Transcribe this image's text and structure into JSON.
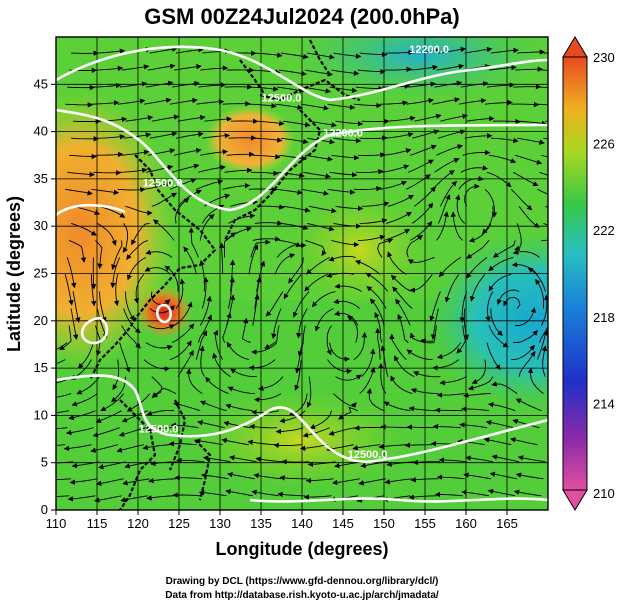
{
  "title": "GSM 00Z24Jul2024 (200.0hPa)",
  "xlabel": "Longitude (degrees)",
  "ylabel": "Latitude (degrees)",
  "credits": {
    "line1": "Drawing by DCL (https://www.gfd-dennou.org/library/dcl/)",
    "line2": "Data from http://database.rish.kyoto-u.ac.jp/arch/jmadata/"
  },
  "axes": {
    "xlim": [
      110,
      170
    ],
    "ylim": [
      0,
      50
    ],
    "x_ticks": [
      "110",
      "115",
      "120",
      "125",
      "130",
      "135",
      "140",
      "145",
      "150",
      "155",
      "160",
      "165"
    ],
    "x_tick_values": [
      110,
      115,
      120,
      125,
      130,
      135,
      140,
      145,
      150,
      155,
      160,
      165
    ],
    "y_ticks": [
      "0",
      "5",
      "10",
      "15",
      "20",
      "25",
      "30",
      "35",
      "40",
      "45"
    ],
    "y_tick_values": [
      0,
      5,
      10,
      15,
      20,
      25,
      30,
      35,
      40,
      45
    ],
    "grid": true
  },
  "colorbar": {
    "range": [
      210,
      230
    ],
    "ticks": [
      "230",
      "226",
      "222",
      "218",
      "214",
      "210"
    ],
    "tick_values": [
      230,
      226,
      222,
      218,
      214,
      210
    ],
    "colors": [
      "#e05080",
      "#7a1fa0",
      "#2233cc",
      "#1a78d8",
      "#22c0c8",
      "#33c840",
      "#a8d820",
      "#f0b020",
      "#e85a20"
    ]
  },
  "contour_labels": [
    {
      "text": "12500.0",
      "lon": 123,
      "lat": 34.2
    },
    {
      "text": "12500.0",
      "lon": 137.5,
      "lat": 43.2
    },
    {
      "text": "12200.0",
      "lon": 145,
      "lat": 39.5
    },
    {
      "text": "12200.0",
      "lon": 155.5,
      "lat": 48.3
    },
    {
      "text": "12500.0",
      "lon": 122.5,
      "lat": 8.2
    },
    {
      "text": "12500.0",
      "lon": 148,
      "lat": 5.5
    }
  ],
  "features": {
    "vortex_centers": [
      {
        "name": "typhoon",
        "lon": 122.5,
        "lat": 23
      },
      {
        "name": "low",
        "lon": 145,
        "lat": 18.5
      },
      {
        "name": "low-east",
        "lon": 166,
        "lat": 21.5
      },
      {
        "name": "high-ne",
        "lon": 161,
        "lat": 33
      }
    ]
  }
}
